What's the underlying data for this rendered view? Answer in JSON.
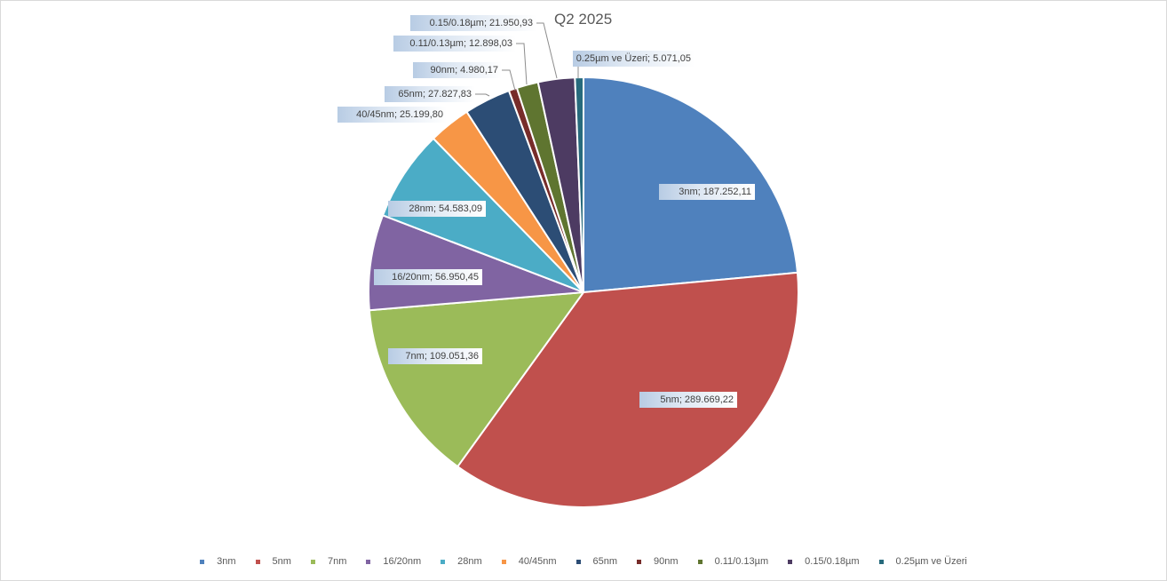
{
  "chart_data": {
    "type": "pie",
    "title": "Q2 2025",
    "start_angle_deg": 0,
    "direction": "clockwise",
    "legend_position": "bottom",
    "slices": [
      {
        "label": "3nm",
        "value": 187252.11,
        "display": "3nm; 187.252,11",
        "color": "#4f81bd"
      },
      {
        "label": "5nm",
        "value": 289669.22,
        "display": "5nm; 289.669,22",
        "color": "#c0504d"
      },
      {
        "label": "7nm",
        "value": 109051.36,
        "display": "7nm; 109.051,36",
        "color": "#9bbb59"
      },
      {
        "label": "16/20nm",
        "value": 56950.45,
        "display": "16/20nm; 56.950,45",
        "color": "#8064a2"
      },
      {
        "label": "28nm",
        "value": 54583.09,
        "display": "28nm; 54.583,09",
        "color": "#4bacc6"
      },
      {
        "label": "40/45nm",
        "value": 25199.8,
        "display": "40/45nm; 25.199,80",
        "color": "#f79646"
      },
      {
        "label": "65nm",
        "value": 27827.83,
        "display": "65nm; 27.827,83",
        "color": "#2c4d75"
      },
      {
        "label": "90nm",
        "value": 4980.17,
        "display": "90nm; 4.980,17",
        "color": "#772c2a"
      },
      {
        "label": "0.11/0.13µm",
        "value": 12898.03,
        "display": "0.11/0.13µm; 12.898,03",
        "color": "#5f7530"
      },
      {
        "label": "0.15/0.18µm",
        "value": 21950.93,
        "display": "0.15/0.18µm; 21.950,93",
        "color": "#4d3b62"
      },
      {
        "label": "0.25µm ve Üzeri",
        "value": 5071.05,
        "display": "0.25µm ve Üzeri; 5.071,05",
        "color": "#276a7c"
      }
    ]
  }
}
